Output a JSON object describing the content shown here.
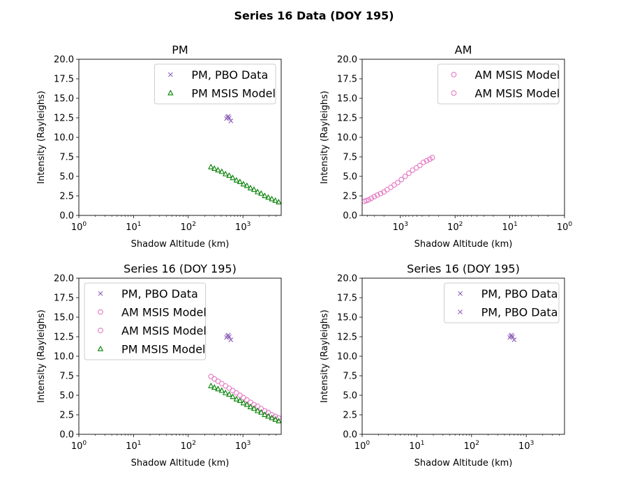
{
  "figure_title": "Series 16 Data (DOY 195)",
  "colors": {
    "pbo": "#9467bd",
    "am": "#e377c2",
    "pm": "#008000"
  },
  "series_styles": {
    "PM, PBO Data": {
      "marker": "x",
      "color": "#9467bd"
    },
    "AM MSIS Model": {
      "marker": "circle",
      "color": "#e377c2"
    },
    "PM MSIS Model": {
      "marker": "triangle",
      "color": "#008000"
    }
  },
  "chart_data": [
    {
      "type": "scatter",
      "title": "PM",
      "xlabel": "Shadow Altitude (km)",
      "ylabel": "Intensity (Rayleighs)",
      "xscale": "log",
      "xlim": [
        1,
        5000
      ],
      "ylim": [
        0,
        20
      ],
      "xticks": [
        1,
        10,
        100,
        1000
      ],
      "yticks": [
        "0.0",
        "2.5",
        "5.0",
        "7.5",
        "10.0",
        "12.5",
        "15.0",
        "17.5",
        "20.0"
      ],
      "legend_position": "upper right",
      "legend": [
        "PM, PBO Data",
        "PM MSIS Model"
      ],
      "series": [
        {
          "name": "PM, PBO Data",
          "x": [
            500,
            520,
            540,
            560,
            600
          ],
          "y": [
            12.4,
            12.6,
            12.7,
            12.5,
            12.1
          ]
        },
        {
          "name": "PM MSIS Model",
          "x": [
            260,
            300,
            350,
            410,
            480,
            560,
            650,
            760,
            880,
            1020,
            1180,
            1370,
            1590,
            1850,
            2150,
            2500,
            2900,
            3370,
            3900,
            4500
          ],
          "y": [
            6.2,
            6.0,
            5.8,
            5.6,
            5.3,
            5.1,
            4.8,
            4.5,
            4.3,
            4.0,
            3.8,
            3.5,
            3.3,
            3.0,
            2.8,
            2.5,
            2.3,
            2.1,
            1.9,
            1.7
          ]
        }
      ]
    },
    {
      "type": "scatter",
      "title": "AM",
      "xlabel": "Shadow Altitude (km)",
      "ylabel": "Intensity (Rayleighs)",
      "xscale": "log",
      "x_inverted": true,
      "xlim": [
        5000,
        1
      ],
      "ylim": [
        0,
        20
      ],
      "xticks": [
        1000,
        100,
        10,
        1
      ],
      "yticks": [
        "0.0",
        "2.5",
        "5.0",
        "7.5",
        "10.0",
        "12.5",
        "15.0",
        "17.5",
        "20.0"
      ],
      "legend_position": "upper right",
      "legend": [
        "AM MSIS Model",
        "AM MSIS Model"
      ],
      "series": [
        {
          "name": "AM MSIS Model",
          "x": [
            4600,
            4200,
            3800,
            3400,
            3000,
            2650,
            2300,
            2000,
            1750,
            1500,
            1300,
            1120,
            960,
            820,
            700,
            600,
            510,
            440,
            380,
            330,
            290,
            260
          ],
          "y": [
            1.8,
            1.9,
            2.0,
            2.2,
            2.4,
            2.6,
            2.8,
            3.0,
            3.3,
            3.6,
            3.9,
            4.2,
            4.6,
            5.0,
            5.4,
            5.8,
            6.1,
            6.4,
            6.8,
            7.0,
            7.2,
            7.4
          ]
        }
      ]
    },
    {
      "type": "scatter",
      "title": "Series 16 (DOY 195)",
      "xlabel": "Shadow Altitude (km)",
      "ylabel": "Intensity (Rayleighs)",
      "xscale": "log",
      "xlim": [
        1,
        5000
      ],
      "ylim": [
        0,
        20
      ],
      "xticks": [
        1,
        10,
        100,
        1000
      ],
      "yticks": [
        "0.0",
        "2.5",
        "5.0",
        "7.5",
        "10.0",
        "12.5",
        "15.0",
        "17.5",
        "20.0"
      ],
      "legend_position": "upper left",
      "legend": [
        "PM, PBO Data",
        "AM MSIS Model",
        "AM MSIS Model",
        "PM MSIS Model"
      ],
      "series": [
        {
          "name": "PM, PBO Data",
          "x": [
            500,
            520,
            540,
            560,
            600
          ],
          "y": [
            12.4,
            12.6,
            12.7,
            12.5,
            12.1
          ]
        },
        {
          "name": "AM MSIS Model",
          "x": [
            260,
            300,
            350,
            410,
            480,
            560,
            650,
            760,
            880,
            1020,
            1180,
            1370,
            1590,
            1850,
            2150,
            2500,
            2900,
            3370,
            3900,
            4500
          ],
          "y": [
            7.4,
            7.1,
            6.8,
            6.5,
            6.2,
            5.9,
            5.6,
            5.3,
            5.0,
            4.7,
            4.4,
            4.1,
            3.8,
            3.6,
            3.3,
            3.0,
            2.8,
            2.5,
            2.3,
            2.1
          ]
        },
        {
          "name": "PM MSIS Model",
          "x": [
            260,
            300,
            350,
            410,
            480,
            560,
            650,
            760,
            880,
            1020,
            1180,
            1370,
            1590,
            1850,
            2150,
            2500,
            2900,
            3370,
            3900,
            4500
          ],
          "y": [
            6.2,
            6.0,
            5.8,
            5.6,
            5.3,
            5.1,
            4.8,
            4.5,
            4.3,
            4.0,
            3.8,
            3.5,
            3.3,
            3.0,
            2.8,
            2.5,
            2.3,
            2.1,
            1.9,
            1.7
          ]
        }
      ]
    },
    {
      "type": "scatter",
      "title": "Series 16 (DOY 195)",
      "xlabel": "Shadow Altitude (km)",
      "ylabel": "Intensity (Rayleighs)",
      "xscale": "log",
      "xlim": [
        1,
        5000
      ],
      "ylim": [
        0,
        20
      ],
      "xticks": [
        1,
        10,
        100,
        1000
      ],
      "yticks": [
        "0.0",
        "2.5",
        "5.0",
        "7.5",
        "10.0",
        "12.5",
        "15.0",
        "17.5",
        "20.0"
      ],
      "legend_position": "upper right",
      "legend": [
        "PM, PBO Data",
        "PM, PBO Data"
      ],
      "series": [
        {
          "name": "PM, PBO Data",
          "x": [
            500,
            520,
            540,
            560,
            600
          ],
          "y": [
            12.4,
            12.6,
            12.7,
            12.5,
            12.1
          ]
        }
      ]
    }
  ]
}
